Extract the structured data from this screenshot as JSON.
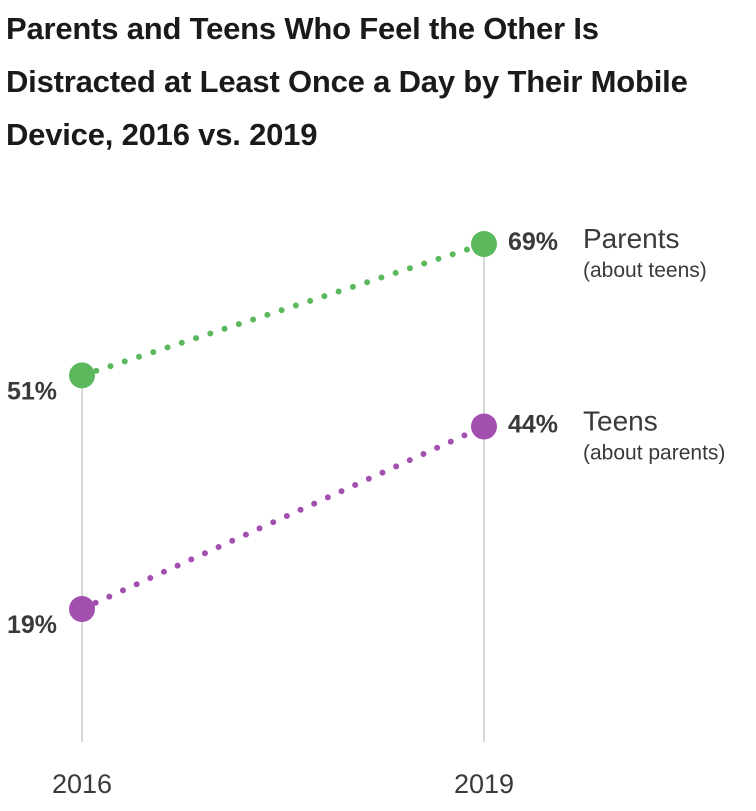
{
  "chart_data": {
    "type": "line",
    "title": "Parents and Teens Who Feel the Other Is Distracted at Least Once a Day by Their Mobile Device, 2016 vs. 2019",
    "categories": [
      "2016",
      "2019"
    ],
    "ylim": [
      0,
      100
    ],
    "series": [
      {
        "name": "Parents",
        "subtitle": "(about teens)",
        "values": [
          51,
          69
        ],
        "labels": [
          "51%",
          "69%"
        ],
        "color": "#5cb85c"
      },
      {
        "name": "Teens",
        "subtitle": "(about parents)",
        "values": [
          19,
          44
        ],
        "labels": [
          "19%",
          "44%"
        ],
        "color": "#a24fb0"
      }
    ]
  },
  "colors": {
    "axis_line": "#cccccc",
    "text": "#3a3a3a"
  }
}
